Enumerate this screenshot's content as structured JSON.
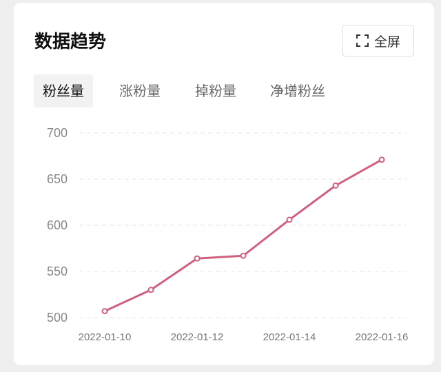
{
  "header": {
    "title": "数据趋势",
    "button": "全屏"
  },
  "tabs": [
    "粉丝量",
    "涨粉量",
    "掉粉量",
    "净增粉丝"
  ],
  "chart_data": {
    "type": "line",
    "categories": [
      "2022-01-10",
      null,
      "2022-01-12",
      null,
      "2022-01-14",
      null,
      "2022-01-16"
    ],
    "values": [
      507,
      530,
      564,
      567,
      606,
      643,
      671
    ],
    "color": "#d0607e",
    "ylim": [
      500,
      700
    ],
    "yticks": [
      500,
      550,
      600,
      650,
      700
    ],
    "grid": true
  }
}
